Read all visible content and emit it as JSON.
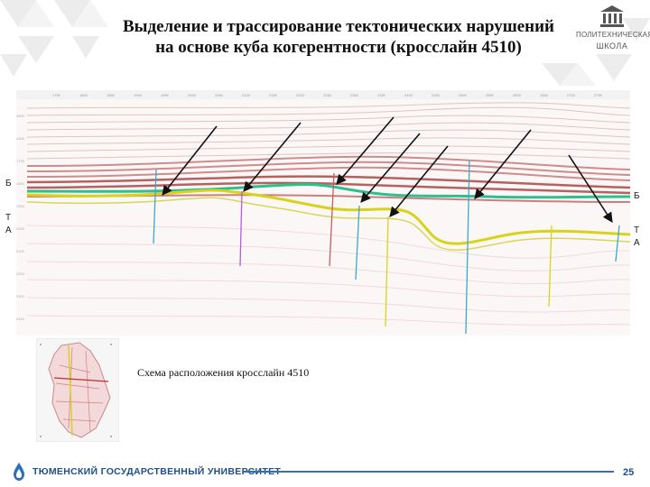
{
  "slide": {
    "title_line1": "Выделение и трассирование тектонических нарушений",
    "title_line2": "на основе куба когерентности (кросслайн 4510)",
    "logo": {
      "line1": "ПОЛИТЕХНИЧЕСКАЯ",
      "line2": "ШКОЛА"
    },
    "horizons": {
      "left_b": "Б",
      "left_t": "Т",
      "left_a": "А",
      "right_b": "Б",
      "right_t": "Т",
      "right_a": "А"
    },
    "caption": "Схема расположения кросслайн 4510",
    "footer": {
      "university": "ТЮМЕНСКИЙ ГОСУДАРСТВЕННЫЙ УНИВЕРСИТЕТ",
      "page_number": "25"
    },
    "colors": {
      "accent_blue": "#1f4e8c",
      "horizon_green": "#2fbf8f",
      "horizon_yellow": "#d9d21a",
      "arrow": "#111111"
    }
  }
}
